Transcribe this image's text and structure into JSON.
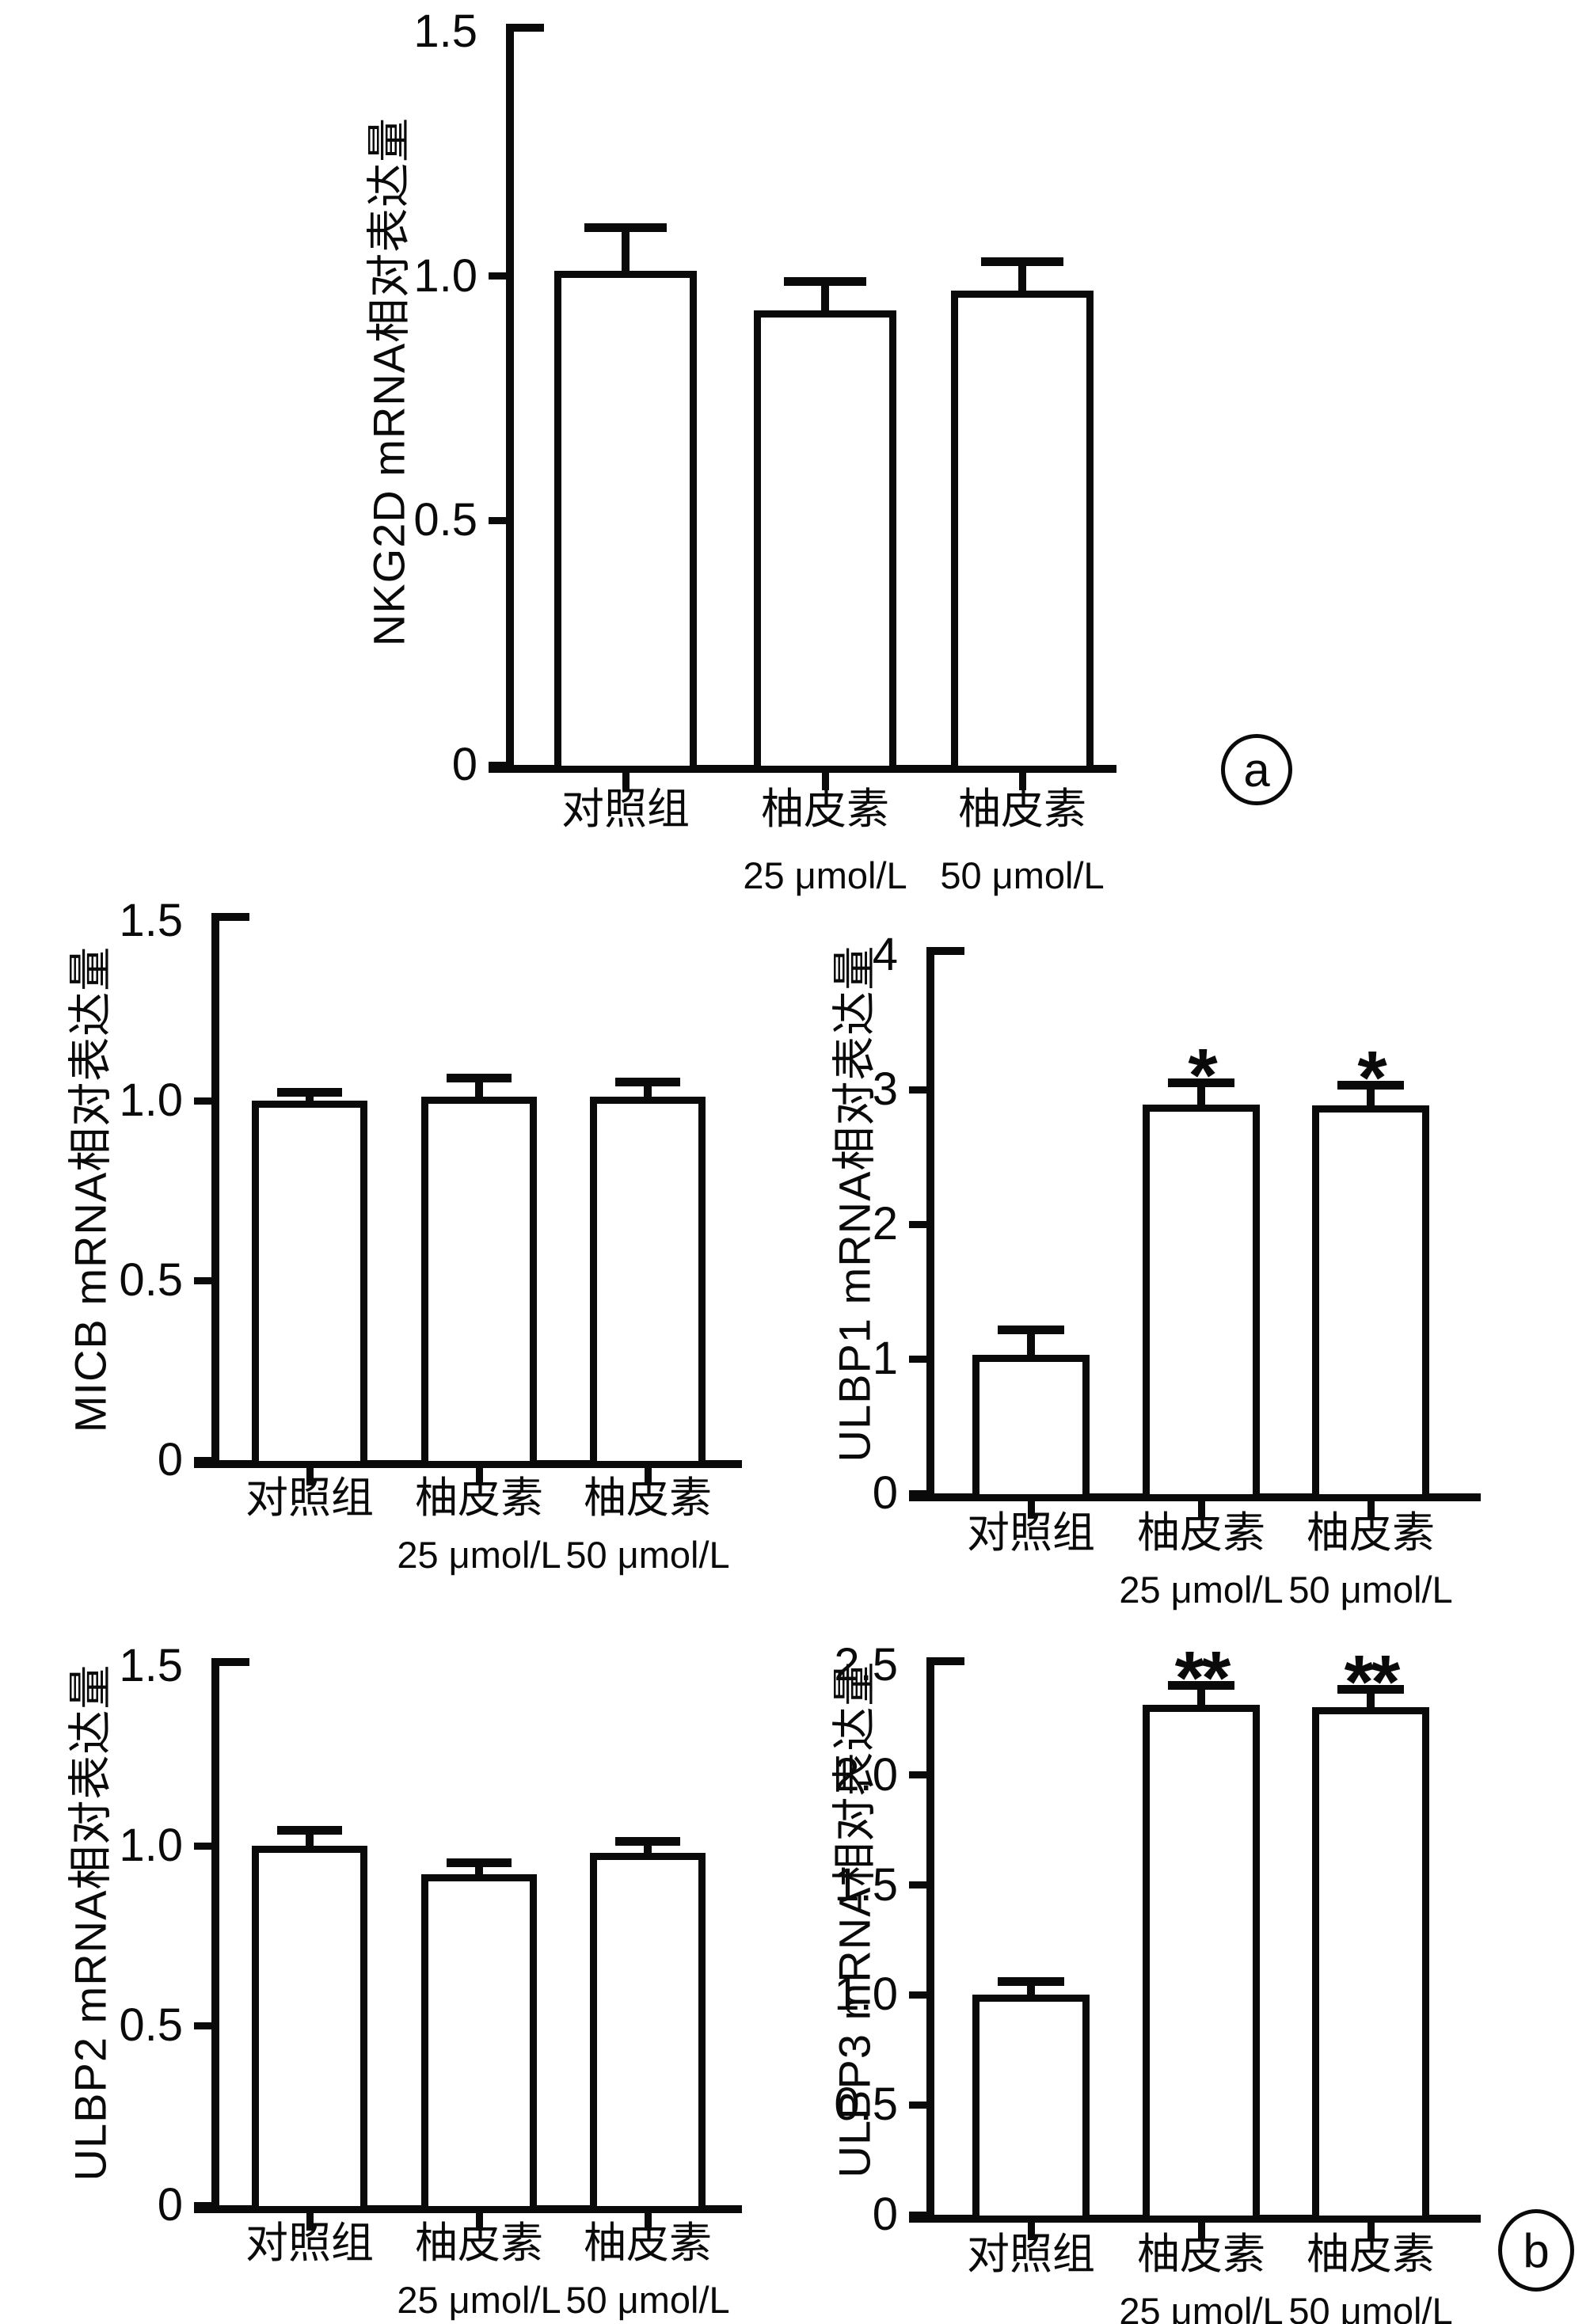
{
  "figure_title": "",
  "panel_badges": [
    {
      "label": "a"
    },
    {
      "label": "b"
    }
  ],
  "colors": {
    "ink": "#0a0a0a",
    "bar_fill": "#ffffff",
    "background": "#ffffff"
  },
  "chart_data": [
    {
      "type": "bar",
      "id": "nkg2d",
      "panel": "a",
      "title": "",
      "xlabel": "",
      "ylabel": "NKG2D mRNA相对表达量",
      "ylim": [
        0,
        1.5
      ],
      "ytick_values": [
        1.5,
        1.0,
        0.5,
        0
      ],
      "ytick_labels": [
        "1.5",
        "1.0",
        "0.5",
        "0"
      ],
      "categories": [
        "对照组",
        "柚皮素 25 μmol/L",
        "柚皮素 50 μmol/L"
      ],
      "xtick_top": [
        "对照组",
        "柚皮素",
        "柚皮素"
      ],
      "xtick_bottom": [
        "",
        "25 μmol/L",
        "50 μmol/L"
      ],
      "values": [
        1.01,
        0.93,
        0.97
      ],
      "errors_upper": [
        0.08,
        0.05,
        0.05
      ],
      "significance": [
        "",
        "",
        ""
      ],
      "grid": false,
      "legend": "none"
    },
    {
      "type": "bar",
      "id": "micb",
      "panel": "b",
      "title": "",
      "xlabel": "",
      "ylabel": "MICB mRNA相对表达量",
      "ylim": [
        0,
        1.5
      ],
      "ytick_values": [
        1.5,
        1.0,
        0.5,
        0
      ],
      "ytick_labels": [
        "1.5",
        "1.0",
        "0.5",
        "0"
      ],
      "categories": [
        "对照组",
        "柚皮素 25 μmol/L",
        "柚皮素 50 μmol/L"
      ],
      "xtick_top": [
        "对照组",
        "柚皮素",
        "柚皮素"
      ],
      "xtick_bottom": [
        "",
        "25 μmol/L",
        "50 μmol/L"
      ],
      "values": [
        1.0,
        1.01,
        1.01
      ],
      "errors_upper": [
        0.01,
        0.04,
        0.03
      ],
      "significance": [
        "",
        "",
        ""
      ],
      "grid": false,
      "legend": "none"
    },
    {
      "type": "bar",
      "id": "ulbp1",
      "panel": "b",
      "title": "",
      "xlabel": "",
      "ylabel": "ULBP1 mRNA相对表达量",
      "ylim": [
        0,
        4
      ],
      "ytick_values": [
        4,
        3,
        2,
        1,
        0
      ],
      "ytick_labels": [
        "4",
        "3",
        "2",
        "1",
        "0"
      ],
      "categories": [
        "对照组",
        "柚皮素 25 μmol/L",
        "柚皮素 50 μmol/L"
      ],
      "xtick_top": [
        "对照组",
        "柚皮素",
        "柚皮素"
      ],
      "xtick_bottom": [
        "",
        "25 μmol/L",
        "50 μmol/L"
      ],
      "values": [
        1.03,
        2.89,
        2.88
      ],
      "errors_upper": [
        0.15,
        0.13,
        0.12
      ],
      "significance": [
        "",
        "*",
        "*"
      ],
      "grid": false,
      "legend": "none"
    },
    {
      "type": "bar",
      "id": "ulbp2",
      "panel": "b",
      "title": "",
      "xlabel": "",
      "ylabel": "ULBP2 mRNA相对表达量",
      "ylim": [
        0,
        1.5
      ],
      "ytick_values": [
        1.5,
        1.0,
        0.5,
        0
      ],
      "ytick_labels": [
        "1.5",
        "1.0",
        "0.5",
        "0"
      ],
      "categories": [
        "对照组",
        "柚皮素 25 μmol/L",
        "柚皮素 50 μmol/L"
      ],
      "xtick_top": [
        "对照组",
        "柚皮素",
        "柚皮素"
      ],
      "xtick_bottom": [
        "",
        "25 μmol/L",
        "50 μmol/L"
      ],
      "values": [
        1.0,
        0.92,
        0.98
      ],
      "errors_upper": [
        0.03,
        0.02,
        0.02
      ],
      "significance": [
        "",
        "",
        ""
      ],
      "grid": false,
      "legend": "none"
    },
    {
      "type": "bar",
      "id": "ulbp3",
      "panel": "b",
      "title": "",
      "xlabel": "",
      "ylabel": "ULBP3 mRNA相对表达量",
      "ylim": [
        0,
        2.5
      ],
      "ytick_values": [
        2.5,
        2.0,
        1.5,
        1.0,
        0.5,
        0
      ],
      "ytick_labels": [
        "2.5",
        "2.0",
        "1.5",
        "1.0",
        "0.5",
        "0"
      ],
      "categories": [
        "对照组",
        "柚皮素 25 μmol/L",
        "柚皮素 50 μmol/L"
      ],
      "xtick_top": [
        "对照组",
        "柚皮素",
        "柚皮素"
      ],
      "xtick_bottom": [
        "",
        "25 μmol/L",
        "50 μmol/L"
      ],
      "values": [
        1.0,
        2.32,
        2.31
      ],
      "errors_upper": [
        0.04,
        0.07,
        0.06
      ],
      "significance": [
        "",
        "**",
        "**"
      ],
      "grid": false,
      "legend": "none"
    }
  ]
}
